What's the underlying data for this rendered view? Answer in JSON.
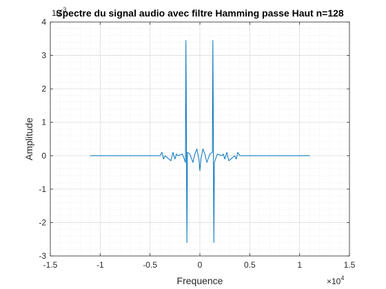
{
  "chart_data": {
    "type": "line",
    "title": "Spectre du signal audio avec filtre Hamming passe Haut n=128",
    "xlabel": "Frequence",
    "ylabel": "Amplitude",
    "x_multiplier_label": "×10",
    "x_multiplier_exp": "4",
    "y_multiplier_label": "10",
    "y_multiplier_exp": "-3",
    "xlim": [
      -15000,
      15000
    ],
    "ylim": [
      -3,
      4
    ],
    "x_scale": 10000,
    "x_ticks": [
      -15000,
      -10000,
      -5000,
      0,
      5000,
      10000,
      15000
    ],
    "x_tick_labels": [
      "-1.5",
      "-1",
      "-0.5",
      "0",
      "0.5",
      "1",
      "1.5"
    ],
    "y_ticks": [
      -3,
      -2,
      -1,
      0,
      1,
      2,
      3,
      4
    ],
    "y_tick_labels": [
      "-3",
      "-2",
      "-1",
      "0",
      "1",
      "2",
      "3",
      "4"
    ],
    "grid": true,
    "minor_grid": true,
    "line_color": "#0072bd",
    "series": [
      {
        "x": [
          -11025,
          -4000,
          -3800,
          -3650,
          -3500,
          -2900,
          -2700,
          -2500,
          -2350,
          -2200,
          -1750,
          -1450,
          -1400,
          -1300,
          -1250,
          -1000,
          -700,
          -500,
          -300,
          -100,
          0,
          100,
          300,
          500,
          700,
          1000,
          1250,
          1300,
          1400,
          1450,
          1750,
          2200,
          2350,
          2500,
          2700,
          2900,
          3500,
          3650,
          3800,
          4000,
          11025
        ],
        "y": [
          0,
          0,
          0.1,
          -0.1,
          0,
          -0.15,
          0.1,
          -0.1,
          0.05,
          0,
          0.05,
          -0.2,
          3.45,
          -2.6,
          0.1,
          0.05,
          -0.2,
          0.05,
          0.2,
          -0.1,
          -0.45,
          -0.1,
          0.2,
          0.05,
          -0.2,
          0.05,
          0.1,
          3.45,
          -2.6,
          -0.2,
          0.05,
          0,
          0.05,
          -0.1,
          0.1,
          -0.15,
          0,
          -0.1,
          0.1,
          0,
          0
        ]
      }
    ]
  }
}
